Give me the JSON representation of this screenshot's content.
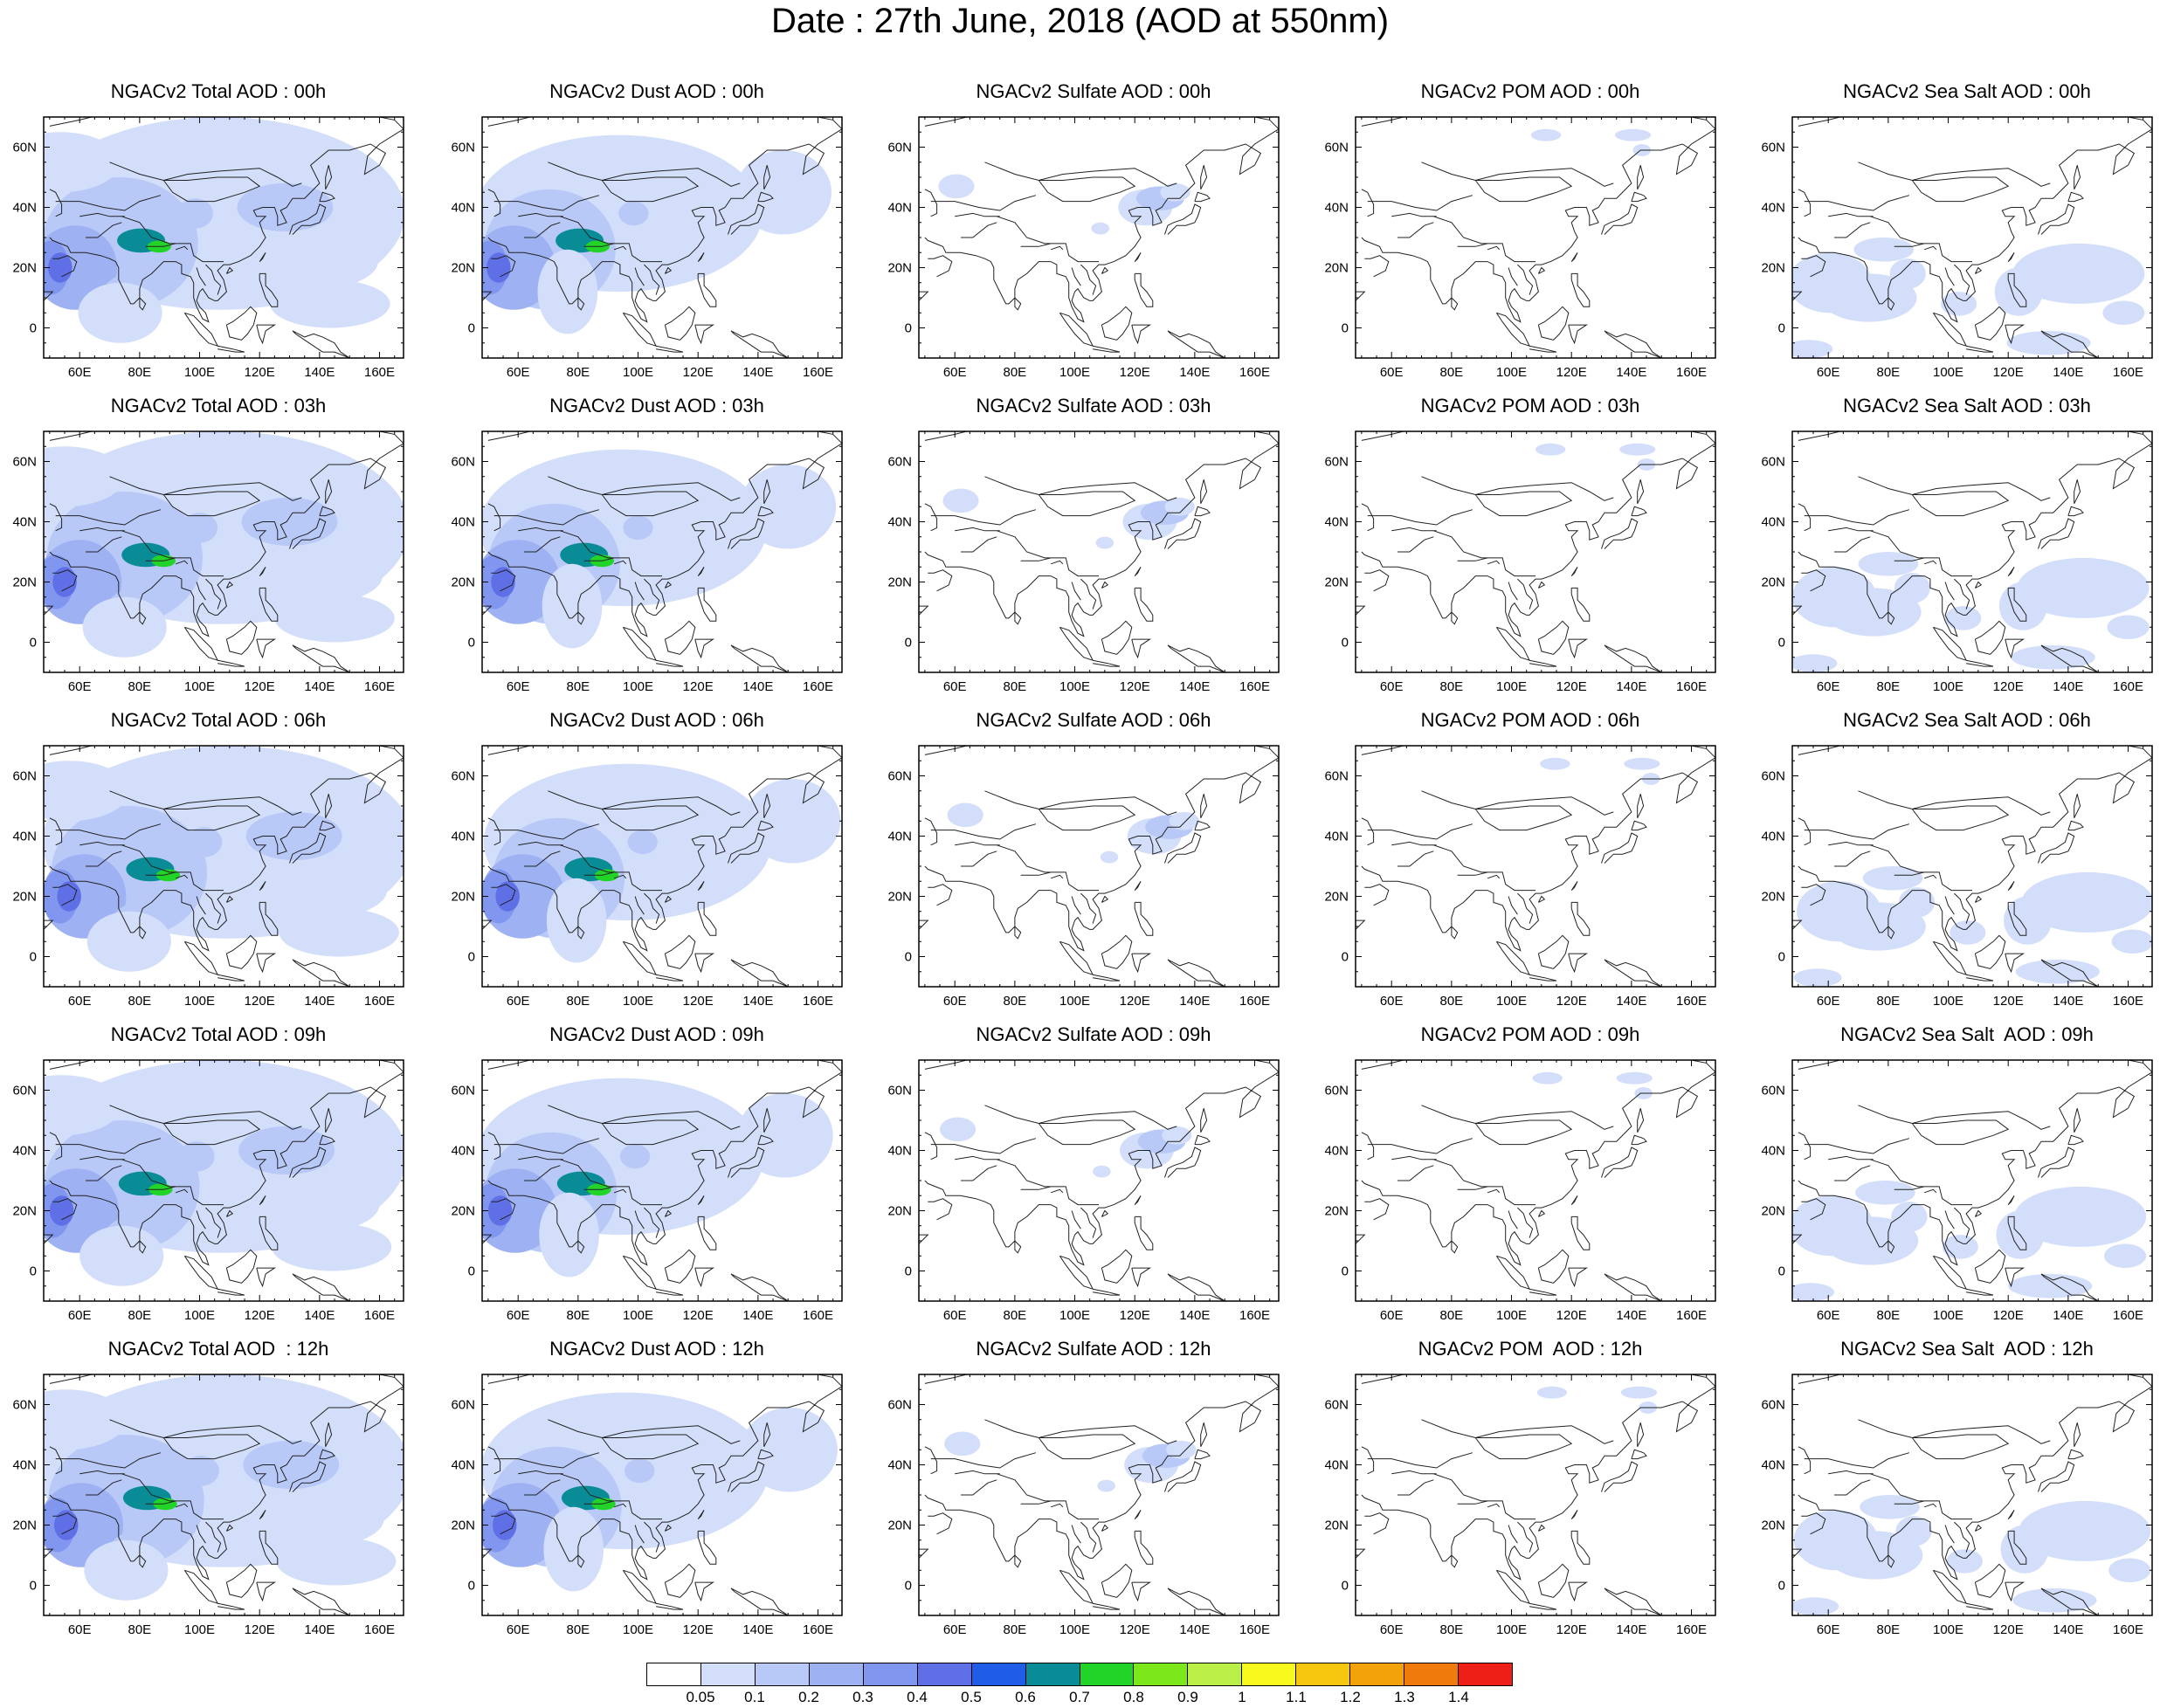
{
  "title": "Date : 27th June, 2018 (AOD at 550nm)",
  "map": {
    "lon_ticks": [
      "60E",
      "80E",
      "100E",
      "120E",
      "140E",
      "160E"
    ],
    "lat_ticks": [
      "60N",
      "40N",
      "20N",
      "0"
    ],
    "lon_range": [
      48,
      168
    ],
    "lat_range": [
      -10,
      70
    ]
  },
  "panels": [
    {
      "title": "NGACv2 Total AOD : 00h",
      "species": "total"
    },
    {
      "title": "NGACv2 Dust AOD : 00h",
      "species": "dust"
    },
    {
      "title": "NGACv2 Sulfate AOD : 00h",
      "species": "sulfate"
    },
    {
      "title": "NGACv2 POM AOD : 00h",
      "species": "pom"
    },
    {
      "title": "NGACv2 Sea Salt AOD : 00h",
      "species": "seasalt"
    },
    {
      "title": "NGACv2 Total AOD : 03h",
      "species": "total"
    },
    {
      "title": "NGACv2 Dust AOD : 03h",
      "species": "dust"
    },
    {
      "title": "NGACv2 Sulfate AOD : 03h",
      "species": "sulfate"
    },
    {
      "title": "NGACv2 POM AOD : 03h",
      "species": "pom"
    },
    {
      "title": "NGACv2 Sea Salt AOD : 03h",
      "species": "seasalt"
    },
    {
      "title": "NGACv2 Total AOD : 06h",
      "species": "total"
    },
    {
      "title": "NGACv2 Dust AOD : 06h",
      "species": "dust"
    },
    {
      "title": "NGACv2 Sulfate AOD : 06h",
      "species": "sulfate"
    },
    {
      "title": "NGACv2 POM AOD : 06h",
      "species": "pom"
    },
    {
      "title": "NGACv2 Sea Salt AOD : 06h",
      "species": "seasalt"
    },
    {
      "title": "NGACv2 Total AOD : 09h",
      "species": "total"
    },
    {
      "title": "NGACv2 Dust AOD : 09h",
      "species": "dust"
    },
    {
      "title": "NGACv2 Sulfate AOD : 09h",
      "species": "sulfate"
    },
    {
      "title": "NGACv2 POM AOD : 09h",
      "species": "pom"
    },
    {
      "title": "NGACv2 Sea Salt  AOD : 09h",
      "species": "seasalt"
    },
    {
      "title": "NGACv2 Total AOD  : 12h",
      "species": "total"
    },
    {
      "title": "NGACv2 Dust AOD : 12h",
      "species": "dust"
    },
    {
      "title": "NGACv2 Sulfate AOD : 12h",
      "species": "sulfate"
    },
    {
      "title": "NGACv2 POM  AOD : 12h",
      "species": "pom"
    },
    {
      "title": "NGACv2 Sea Salt  AOD : 12h",
      "species": "seasalt"
    }
  ],
  "colorbar": {
    "labels": [
      "0.05",
      "0.1",
      "0.2",
      "0.3",
      "0.4",
      "0.5",
      "0.6",
      "0.7",
      "0.8",
      "0.9",
      "1",
      "1.1",
      "1.2",
      "1.3",
      "1.4"
    ],
    "colors": [
      "#ffffff",
      "#d3defa",
      "#b8c9f8",
      "#9db1f3",
      "#8096ef",
      "#5f6fe6",
      "#1f5ce8",
      "#0a8c96",
      "#22d427",
      "#7ce81c",
      "#b9ef46",
      "#f8f91d",
      "#f7c60e",
      "#f4a20a",
      "#f07a0c",
      "#ed1f16"
    ]
  }
}
